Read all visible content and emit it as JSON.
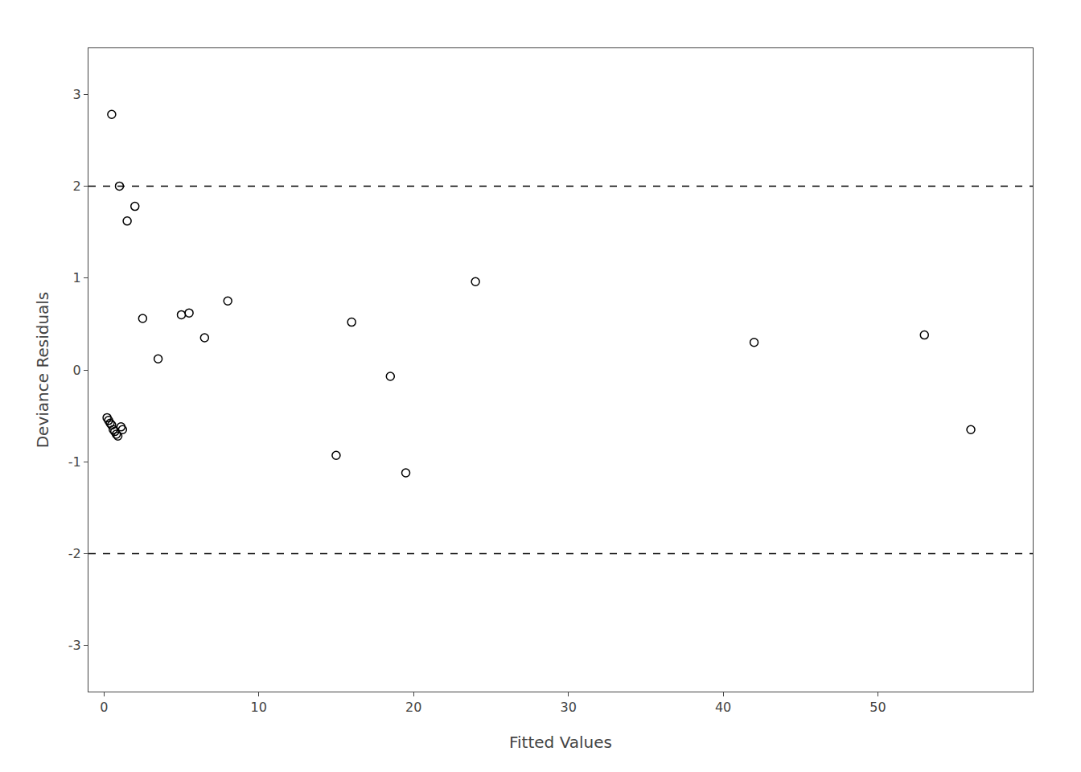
{
  "chart_data": {
    "type": "scatter",
    "x": [
      0.5,
      1.0,
      1.5,
      2.0,
      2.5,
      3.5,
      5.0,
      5.5,
      6.5,
      8.0,
      0.2,
      0.3,
      0.4,
      0.5,
      0.6,
      0.7,
      0.8,
      0.9,
      1.1,
      1.2,
      15.0,
      16.0,
      18.5,
      19.5,
      24.0,
      42.0,
      53.0,
      56.0
    ],
    "values": [
      2.78,
      2.0,
      1.62,
      1.78,
      0.56,
      0.12,
      0.6,
      0.62,
      0.35,
      0.75,
      -0.52,
      -0.55,
      -0.58,
      -0.6,
      -0.65,
      -0.67,
      -0.7,
      -0.72,
      -0.62,
      -0.65,
      -0.93,
      0.52,
      -0.07,
      -1.12,
      0.96,
      0.3,
      0.38,
      -0.65
    ],
    "color": "#000000",
    "marker": "open",
    "xlabel": "Fitted Values",
    "ylabel": "Deviance Residuals",
    "xlim": [
      -1,
      60
    ],
    "ylim": [
      -3.5,
      3.5
    ],
    "xticks": [
      0,
      10,
      20,
      30,
      40,
      50
    ],
    "yticks": [
      -3,
      -2,
      -1,
      0,
      1,
      2,
      3
    ],
    "hlines": {
      "values": [
        2.0,
        -2.0
      ],
      "color": "#000000",
      "line_style": "dashed"
    },
    "grid": false
  }
}
